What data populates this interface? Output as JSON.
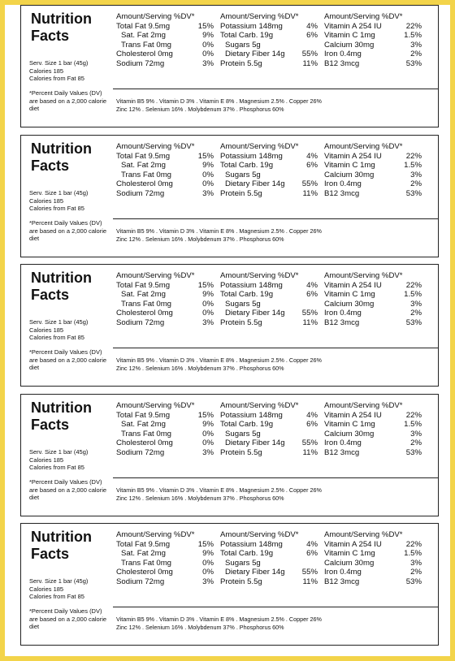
{
  "labels": [
    {
      "title_line1": "Nutrition",
      "title_line2": "Facts",
      "serving": [
        "Serv. Size 1 bar (45g)",
        "Calories 185",
        "Calories from Fat 85"
      ],
      "footnote": "*Percent Daily Values (DV) are based on a 2,000 calorie diet",
      "columns": [
        {
          "header": "Amount/Serving %DV*",
          "rows": [
            {
              "name": "Total Fat 9.5mg",
              "dv": "15%",
              "indent": false
            },
            {
              "name": "Sat. Fat 2mg",
              "dv": "9%",
              "indent": true
            },
            {
              "name": "Trans Fat 0mg",
              "dv": "0%",
              "indent": true
            },
            {
              "name": "Cholesterol 0mg",
              "dv": "0%",
              "indent": false
            },
            {
              "name": "Sodium 72mg",
              "dv": "3%",
              "indent": false
            }
          ]
        },
        {
          "header": "Amount/Serving %DV*",
          "rows": [
            {
              "name": "Potassium 148mg",
              "dv": "4%",
              "indent": false
            },
            {
              "name": "Total Carb. 19g",
              "dv": "6%",
              "indent": false
            },
            {
              "name": "Sugars 5g",
              "dv": "",
              "indent": true
            },
            {
              "name": "Dietary Fiber 14g",
              "dv": "55%",
              "indent": true
            },
            {
              "name": "Protein 5.5g",
              "dv": "11%",
              "indent": false
            }
          ]
        },
        {
          "header": "Amount/Serving %DV*",
          "rows": [
            {
              "name": "Vitamin A 254 IU",
              "dv": "22%",
              "indent": false
            },
            {
              "name": "Vitamin C 1mg",
              "dv": "1.5%",
              "indent": false
            },
            {
              "name": "Calcium 30mg",
              "dv": "3%",
              "indent": false
            },
            {
              "name": "Iron 0.4mg",
              "dv": "2%",
              "indent": false
            },
            {
              "name": "B12 3mcg",
              "dv": "53%",
              "indent": false
            }
          ]
        }
      ],
      "vitamins_line1": "Vitamin B5 9% . Vitamin D 3% . Vitamin E 8% . Magnesium 2.5% . Copper 26%",
      "vitamins_line2": "Zinc 12% . Selenium 16% . Molybdenum 37% . Phosphorus 60%"
    },
    {
      "title_line1": "Nutrition",
      "title_line2": "Facts",
      "serving": [
        "Serv. Size 1 bar (45g)",
        "Calories 185",
        "Calories from Fat 85"
      ],
      "footnote": "*Percent Daily Values (DV) are based on a 2,000 calorie diet",
      "columns": [
        {
          "header": "Amount/Serving %DV*",
          "rows": [
            {
              "name": "Total Fat 9.5mg",
              "dv": "15%",
              "indent": false
            },
            {
              "name": "Sat. Fat 2mg",
              "dv": "9%",
              "indent": true
            },
            {
              "name": "Trans Fat 0mg",
              "dv": "0%",
              "indent": true
            },
            {
              "name": "Cholesterol 0mg",
              "dv": "0%",
              "indent": false
            },
            {
              "name": "Sodium 72mg",
              "dv": "3%",
              "indent": false
            }
          ]
        },
        {
          "header": "Amount/Serving %DV*",
          "rows": [
            {
              "name": "Potassium 148mg",
              "dv": "4%",
              "indent": false
            },
            {
              "name": "Total Carb. 19g",
              "dv": "6%",
              "indent": false
            },
            {
              "name": "Sugars 5g",
              "dv": "",
              "indent": true
            },
            {
              "name": "Dietary Fiber 14g",
              "dv": "55%",
              "indent": true
            },
            {
              "name": "Protein 5.5g",
              "dv": "11%",
              "indent": false
            }
          ]
        },
        {
          "header": "Amount/Serving %DV*",
          "rows": [
            {
              "name": "Vitamin A 254 IU",
              "dv": "22%",
              "indent": false
            },
            {
              "name": "Vitamin C 1mg",
              "dv": "1.5%",
              "indent": false
            },
            {
              "name": "Calcium 30mg",
              "dv": "3%",
              "indent": false
            },
            {
              "name": "Iron 0.4mg",
              "dv": "2%",
              "indent": false
            },
            {
              "name": "B12 3mcg",
              "dv": "53%",
              "indent": false
            }
          ]
        }
      ],
      "vitamins_line1": "Vitamin B5 9% . Vitamin D 3% . Vitamin E 8% . Magnesium 2.5% . Copper 26%",
      "vitamins_line2": "Zinc 12% . Selenium 16% . Molybdenum 37% . Phosphorus 60%"
    },
    {
      "title_line1": "Nutrition",
      "title_line2": "Facts",
      "serving": [
        "Serv. Size 1 bar (45g)",
        "Calories 185",
        "Calories from Fat 85"
      ],
      "footnote": "*Percent Daily Values (DV) are based on a 2,000 calorie diet",
      "columns": [
        {
          "header": "Amount/Serving %DV*",
          "rows": [
            {
              "name": "Total Fat 9.5mg",
              "dv": "15%",
              "indent": false
            },
            {
              "name": "Sat. Fat 2mg",
              "dv": "9%",
              "indent": true
            },
            {
              "name": "Trans Fat 0mg",
              "dv": "0%",
              "indent": true
            },
            {
              "name": "Cholesterol 0mg",
              "dv": "0%",
              "indent": false
            },
            {
              "name": "Sodium 72mg",
              "dv": "3%",
              "indent": false
            }
          ]
        },
        {
          "header": "Amount/Serving %DV*",
          "rows": [
            {
              "name": "Potassium 148mg",
              "dv": "4%",
              "indent": false
            },
            {
              "name": "Total Carb. 19g",
              "dv": "6%",
              "indent": false
            },
            {
              "name": "Sugars 5g",
              "dv": "",
              "indent": true
            },
            {
              "name": "Dietary Fiber 14g",
              "dv": "55%",
              "indent": true
            },
            {
              "name": "Protein 5.5g",
              "dv": "11%",
              "indent": false
            }
          ]
        },
        {
          "header": "Amount/Serving %DV*",
          "rows": [
            {
              "name": "Vitamin A 254 IU",
              "dv": "22%",
              "indent": false
            },
            {
              "name": "Vitamin C 1mg",
              "dv": "1.5%",
              "indent": false
            },
            {
              "name": "Calcium 30mg",
              "dv": "3%",
              "indent": false
            },
            {
              "name": "Iron 0.4mg",
              "dv": "2%",
              "indent": false
            },
            {
              "name": "B12 3mcg",
              "dv": "53%",
              "indent": false
            }
          ]
        }
      ],
      "vitamins_line1": "Vitamin B5 9% . Vitamin D 3% . Vitamin E 8% . Magnesium 2.5% . Copper 26%",
      "vitamins_line2": "Zinc 12% . Selenium 16% . Molybdenum 37% . Phosphorus 60%"
    },
    {
      "title_line1": "Nutrition",
      "title_line2": "Facts",
      "serving": [
        "Serv. Size 1 bar (45g)",
        "Calories 185",
        "Calories from Fat 85"
      ],
      "footnote": "*Percent Daily Values (DV) are based on a 2,000 calorie diet",
      "columns": [
        {
          "header": "Amount/Serving %DV*",
          "rows": [
            {
              "name": "Total Fat 9.5mg",
              "dv": "15%",
              "indent": false
            },
            {
              "name": "Sat. Fat 2mg",
              "dv": "9%",
              "indent": true
            },
            {
              "name": "Trans Fat 0mg",
              "dv": "0%",
              "indent": true
            },
            {
              "name": "Cholesterol 0mg",
              "dv": "0%",
              "indent": false
            },
            {
              "name": "Sodium 72mg",
              "dv": "3%",
              "indent": false
            }
          ]
        },
        {
          "header": "Amount/Serving %DV*",
          "rows": [
            {
              "name": "Potassium 148mg",
              "dv": "4%",
              "indent": false
            },
            {
              "name": "Total Carb. 19g",
              "dv": "6%",
              "indent": false
            },
            {
              "name": "Sugars 5g",
              "dv": "",
              "indent": true
            },
            {
              "name": "Dietary Fiber 14g",
              "dv": "55%",
              "indent": true
            },
            {
              "name": "Protein 5.5g",
              "dv": "11%",
              "indent": false
            }
          ]
        },
        {
          "header": "Amount/Serving %DV*",
          "rows": [
            {
              "name": "Vitamin A 254 IU",
              "dv": "22%",
              "indent": false
            },
            {
              "name": "Vitamin C 1mg",
              "dv": "1.5%",
              "indent": false
            },
            {
              "name": "Calcium 30mg",
              "dv": "3%",
              "indent": false
            },
            {
              "name": "Iron 0.4mg",
              "dv": "2%",
              "indent": false
            },
            {
              "name": "B12 3mcg",
              "dv": "53%",
              "indent": false
            }
          ]
        }
      ],
      "vitamins_line1": "Vitamin B5 9% . Vitamin D 3% . Vitamin E 8% . Magnesium 2.5% . Copper 26%",
      "vitamins_line2": "Zinc 12% . Selenium 16% . Molybdenum 37% . Phosphorus 60%"
    },
    {
      "title_line1": "Nutrition",
      "title_line2": "Facts",
      "serving": [
        "Serv. Size 1 bar (45g)",
        "Calories 185",
        "Calories from Fat 85"
      ],
      "footnote": "*Percent Daily Values (DV) are based on a 2,000 calorie diet",
      "columns": [
        {
          "header": "Amount/Serving %DV*",
          "rows": [
            {
              "name": "Total Fat 9.5mg",
              "dv": "15%",
              "indent": false
            },
            {
              "name": "Sat. Fat 2mg",
              "dv": "9%",
              "indent": true
            },
            {
              "name": "Trans Fat 0mg",
              "dv": "0%",
              "indent": true
            },
            {
              "name": "Cholesterol 0mg",
              "dv": "0%",
              "indent": false
            },
            {
              "name": "Sodium 72mg",
              "dv": "3%",
              "indent": false
            }
          ]
        },
        {
          "header": "Amount/Serving %DV*",
          "rows": [
            {
              "name": "Potassium 148mg",
              "dv": "4%",
              "indent": false
            },
            {
              "name": "Total Carb. 19g",
              "dv": "6%",
              "indent": false
            },
            {
              "name": "Sugars 5g",
              "dv": "",
              "indent": true
            },
            {
              "name": "Dietary Fiber 14g",
              "dv": "55%",
              "indent": true
            },
            {
              "name": "Protein 5.5g",
              "dv": "11%",
              "indent": false
            }
          ]
        },
        {
          "header": "Amount/Serving %DV*",
          "rows": [
            {
              "name": "Vitamin A 254 IU",
              "dv": "22%",
              "indent": false
            },
            {
              "name": "Vitamin C 1mg",
              "dv": "1.5%",
              "indent": false
            },
            {
              "name": "Calcium 30mg",
              "dv": "3%",
              "indent": false
            },
            {
              "name": "Iron 0.4mg",
              "dv": "2%",
              "indent": false
            },
            {
              "name": "B12 3mcg",
              "dv": "53%",
              "indent": false
            }
          ]
        }
      ],
      "vitamins_line1": "Vitamin B5 9% . Vitamin D 3% . Vitamin E 8% . Magnesium 2.5% . Copper 26%",
      "vitamins_line2": "Zinc 12% . Selenium 16% . Molybdenum 37% . Phosphorus 60%"
    }
  ]
}
